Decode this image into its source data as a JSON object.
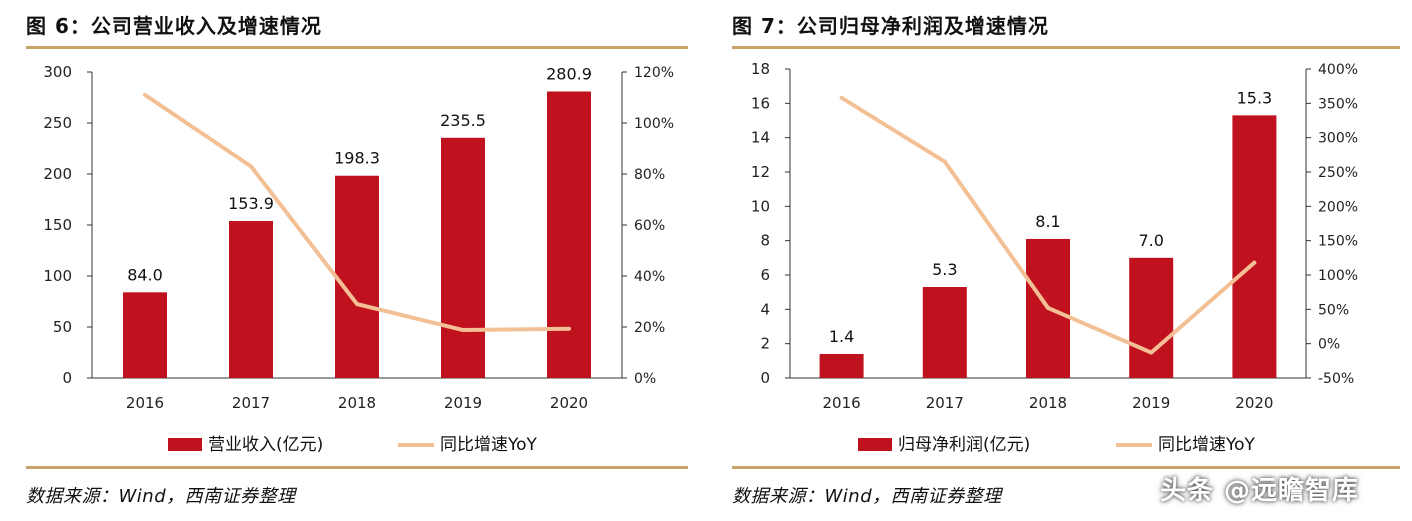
{
  "panels": [
    {
      "title": "图 6：公司营业收入及增速情况",
      "source": "数据来源：Wind，西南证券整理"
    },
    {
      "title": "图 7：公司归母净利润及增速情况",
      "source": "数据来源：Wind，西南证券整理"
    }
  ],
  "watermark": "头条 @远瞻智库",
  "colors": {
    "bar": "#c0111f",
    "line": "#f3c096",
    "rule": "#c9a46a",
    "axis": "#333333"
  },
  "chart_data": [
    {
      "type": "bar",
      "categories": [
        "2016",
        "2017",
        "2018",
        "2019",
        "2020"
      ],
      "series": [
        {
          "name": "营业收入(亿元)",
          "type": "bar",
          "axis": "left",
          "values": [
            84.0,
            153.9,
            198.3,
            235.5,
            280.9
          ],
          "labels": [
            "84.0",
            "153.9",
            "198.3",
            "235.5",
            "280.9"
          ]
        },
        {
          "name": "同比增速YoY",
          "type": "line",
          "axis": "right",
          "values": [
            111,
            83,
            29,
            18.8,
            19.3
          ]
        }
      ],
      "y_left": {
        "min": 0,
        "max": 300,
        "ticks": [
          "0",
          "50",
          "100",
          "150",
          "200",
          "250",
          "300"
        ]
      },
      "y_right": {
        "min": 0,
        "max": 120,
        "ticks": [
          "0%",
          "20%",
          "40%",
          "60%",
          "80%",
          "100%",
          "120%"
        ]
      },
      "legend": "bottom",
      "grid": false
    },
    {
      "type": "bar",
      "categories": [
        "2016",
        "2017",
        "2018",
        "2019",
        "2020"
      ],
      "series": [
        {
          "name": "归母净利润(亿元)",
          "type": "bar",
          "axis": "left",
          "values": [
            1.4,
            5.3,
            8.1,
            7.0,
            15.3
          ],
          "labels": [
            "1.4",
            "5.3",
            "8.1",
            "7.0",
            "15.3"
          ]
        },
        {
          "name": "同比增速YoY",
          "type": "line",
          "axis": "right",
          "values": [
            358,
            265,
            52,
            -13,
            118
          ]
        }
      ],
      "y_left": {
        "min": 0,
        "max": 18,
        "ticks": [
          "0",
          "2",
          "4",
          "6",
          "8",
          "10",
          "12",
          "14",
          "16",
          "18"
        ]
      },
      "y_right": {
        "min": -50,
        "max": 400,
        "ticks": [
          "-50%",
          "0%",
          "50%",
          "100%",
          "150%",
          "200%",
          "250%",
          "300%",
          "350%",
          "400%"
        ]
      },
      "legend": "bottom",
      "grid": false
    }
  ]
}
